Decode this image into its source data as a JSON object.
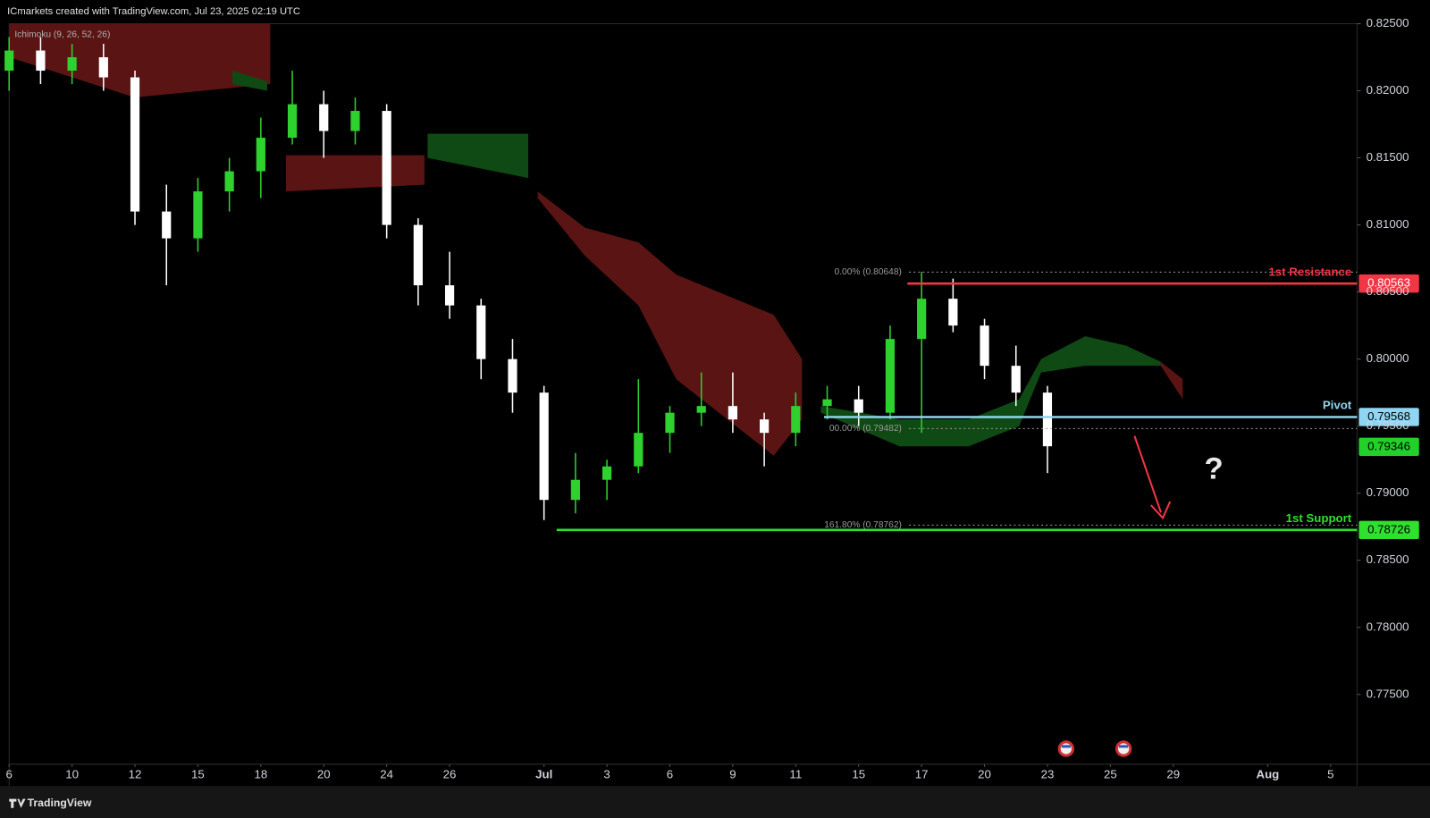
{
  "chart_data": {
    "type": "candlestick",
    "title": "ICmarkets created with TradingView.com, Jul 23, 2025 02:19 UTC",
    "indicator": "Ichimoku (9, 26, 52, 26)",
    "footer": "TradingView",
    "annotation": "?",
    "up_color": "#2ed12e",
    "down_color": "#ffffff",
    "x": [
      0,
      1,
      2,
      3,
      4,
      5,
      6,
      7,
      8,
      9,
      10,
      11,
      12,
      13,
      14,
      15,
      16,
      17,
      18,
      19,
      20,
      21,
      22,
      23,
      24,
      25,
      26,
      27,
      28,
      29,
      30,
      31,
      32,
      33
    ],
    "open": [
      0.8215,
      0.823,
      0.8215,
      0.8225,
      0.821,
      0.811,
      0.809,
      0.8125,
      0.814,
      0.8165,
      0.819,
      0.817,
      0.8185,
      0.81,
      0.8055,
      0.804,
      0.8,
      0.7975,
      0.7895,
      0.791,
      0.792,
      0.7945,
      0.796,
      0.7965,
      0.7955,
      0.7945,
      0.7965,
      0.797,
      0.796,
      0.8015,
      0.8045,
      0.8025,
      0.7995,
      0.7975
    ],
    "high": [
      0.824,
      0.824,
      0.8235,
      0.8235,
      0.8215,
      0.813,
      0.8135,
      0.815,
      0.818,
      0.8215,
      0.82,
      0.8195,
      0.819,
      0.8105,
      0.808,
      0.8045,
      0.8015,
      0.798,
      0.793,
      0.7925,
      0.7985,
      0.7965,
      0.799,
      0.799,
      0.796,
      0.7975,
      0.798,
      0.798,
      0.8025,
      0.8065,
      0.806,
      0.803,
      0.801,
      0.798
    ],
    "low": [
      0.82,
      0.8205,
      0.8205,
      0.82,
      0.81,
      0.8055,
      0.808,
      0.811,
      0.812,
      0.816,
      0.815,
      0.816,
      0.809,
      0.804,
      0.803,
      0.7985,
      0.796,
      0.788,
      0.7885,
      0.7895,
      0.7915,
      0.793,
      0.795,
      0.7945,
      0.792,
      0.7935,
      0.7955,
      0.795,
      0.7955,
      0.7945,
      0.802,
      0.7985,
      0.7965,
      0.7915
    ],
    "close": [
      0.823,
      0.8215,
      0.8225,
      0.821,
      0.811,
      0.809,
      0.8125,
      0.814,
      0.8165,
      0.819,
      0.817,
      0.8185,
      0.81,
      0.8055,
      0.804,
      0.8,
      0.7975,
      0.7895,
      0.791,
      0.792,
      0.7945,
      0.796,
      0.7965,
      0.7955,
      0.7945,
      0.7965,
      0.797,
      0.796,
      0.8015,
      0.8045,
      0.8025,
      0.7995,
      0.7975,
      0.7935
    ],
    "last_price": 0.79346,
    "last_price_color": "#22d02a",
    "cloud": [
      {
        "color": "#5a1414",
        "x": [
          0,
          4,
          8.3
        ],
        "upper": [
          0.825,
          0.825,
          0.825
        ],
        "lower": [
          0.8225,
          0.8195,
          0.8205
        ]
      },
      {
        "color": "#0f4a14",
        "x": [
          7.1,
          8.2
        ],
        "upper": [
          0.8215,
          0.8207
        ],
        "lower": [
          0.8205,
          0.82
        ]
      },
      {
        "color": "#5a1414",
        "x": [
          8.8,
          13.2
        ],
        "upper": [
          0.8152,
          0.8152
        ],
        "lower": [
          0.8125,
          0.813
        ]
      },
      {
        "color": "#0f4a14",
        "x": [
          13.3,
          16.5
        ],
        "upper": [
          0.8168,
          0.8168
        ],
        "lower": [
          0.815,
          0.8135
        ]
      },
      {
        "color": "#5a1414",
        "x": [
          16.8,
          18.3,
          20,
          21.2,
          24.3,
          25.2
        ],
        "upper": [
          0.8125,
          0.8098,
          0.8087,
          0.8063,
          0.8033,
          0.8
        ],
        "lower": [
          0.812,
          0.8077,
          0.804,
          0.7985,
          0.7928,
          0.7955
        ]
      },
      {
        "color": "#0f4a14",
        "x": [
          25.8,
          28.3,
          30.5,
          32.1,
          32.8,
          34.2,
          35.5,
          36.6
        ],
        "upper": [
          0.7965,
          0.7955,
          0.7955,
          0.797,
          0.8,
          0.8017,
          0.801,
          0.7998
        ],
        "lower": [
          0.796,
          0.7935,
          0.7935,
          0.795,
          0.799,
          0.7995,
          0.7995,
          0.7995
        ]
      },
      {
        "color": "#5a1414",
        "x": [
          36.6,
          37.3
        ],
        "upper": [
          0.7998,
          0.7985
        ],
        "lower": [
          0.7995,
          0.797
        ]
      }
    ],
    "levels": [
      {
        "name": "1st Resistance",
        "value": 0.80563,
        "color": "#f23645",
        "text_color": "#ffffff",
        "start": 28.55
      },
      {
        "name": "Pivot",
        "value": 0.79568,
        "color": "#8fd6f2",
        "text_color": "#000000",
        "start": 25.9
      },
      {
        "name": "1st Support",
        "value": 0.78726,
        "color": "#2fe02f",
        "text_color": "#000000",
        "start": 17.4
      }
    ],
    "fib": [
      {
        "value": 0.80648,
        "label": "0.00% (0.80648)",
        "start": 28.6
      },
      {
        "value": 0.79482,
        "label": "00.00% (0.79482)",
        "start": 28.6
      },
      {
        "value": 0.78762,
        "label": "161.80% (0.78762)",
        "start": 28.6
      }
    ],
    "xlim": [
      0,
      42.84
    ],
    "ylim": [
      0.7698,
      0.825
    ],
    "xticks": [
      {
        "value": 0,
        "label": "6"
      },
      {
        "value": 2,
        "label": "10"
      },
      {
        "value": 4,
        "label": "12"
      },
      {
        "value": 6,
        "label": "15"
      },
      {
        "value": 8,
        "label": "18"
      },
      {
        "value": 10,
        "label": "20"
      },
      {
        "value": 12,
        "label": "24"
      },
      {
        "value": 14,
        "label": "26"
      },
      {
        "value": 17,
        "label": "Jul"
      },
      {
        "value": 19,
        "label": "3"
      },
      {
        "value": 21,
        "label": "6"
      },
      {
        "value": 23,
        "label": "9"
      },
      {
        "value": 25,
        "label": "11"
      },
      {
        "value": 27,
        "label": "15"
      },
      {
        "value": 29,
        "label": "17"
      },
      {
        "value": 31,
        "label": "20"
      },
      {
        "value": 33,
        "label": "23"
      },
      {
        "value": 35,
        "label": "25"
      },
      {
        "value": 37,
        "label": "29"
      },
      {
        "value": 40,
        "label": "Aug"
      },
      {
        "value": 42,
        "label": "5"
      }
    ],
    "yticks": [
      {
        "value": 0.825,
        "label": "0.82500"
      },
      {
        "value": 0.82,
        "label": "0.82000"
      },
      {
        "value": 0.815,
        "label": "0.81500"
      },
      {
        "value": 0.81,
        "label": "0.81000"
      },
      {
        "value": 0.805,
        "label": "0.80500"
      },
      {
        "value": 0.8,
        "label": "0.80000"
      },
      {
        "value": 0.795,
        "label": "0.79500"
      },
      {
        "value": 0.79,
        "label": "0.79000"
      },
      {
        "value": 0.785,
        "label": "0.78500"
      },
      {
        "value": 0.78,
        "label": "0.78000"
      },
      {
        "value": 0.775,
        "label": "0.77500"
      }
    ]
  }
}
